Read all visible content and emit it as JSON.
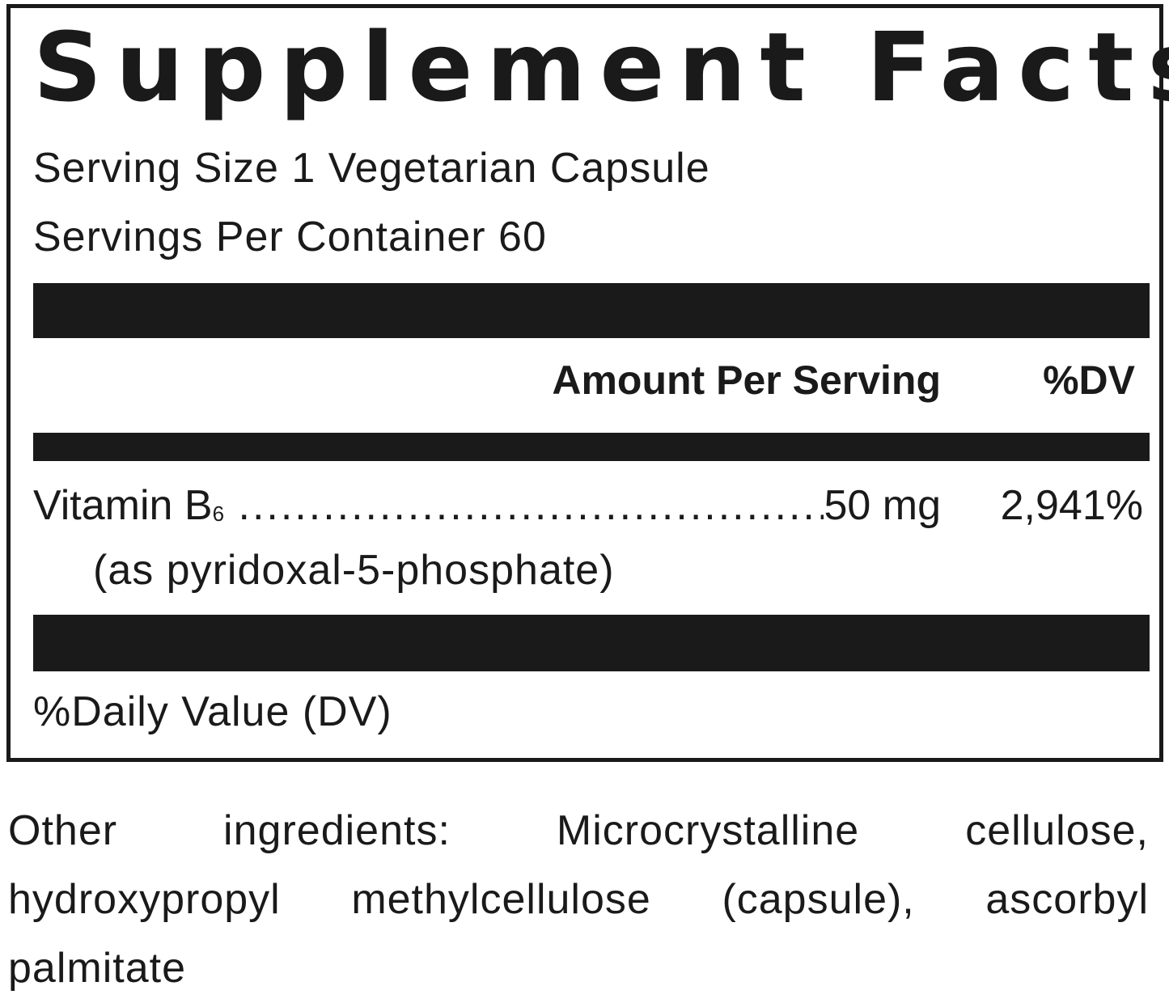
{
  "label": {
    "title": "Supplement Facts",
    "serving_size": "Serving Size 1 Vegetarian Capsule",
    "servings_per_container": "Servings Per Container 60",
    "header_amount": "Amount Per Serving",
    "header_dv": "%DV",
    "nutrients": [
      {
        "name": "Vitamin B",
        "subscript": "6",
        "amount": "50 mg",
        "dv": "2,941%",
        "form": "(as pyridoxal-5-phosphate)"
      }
    ],
    "footnote": "%Daily Value (DV)"
  },
  "other_ingredients": "Other ingredients: Microcrystalline cellulose, hydroxypropyl methylcellulose (capsule), ascorbyl palmitate",
  "colors": {
    "ink": "#1a1a1a",
    "background": "#ffffff"
  }
}
